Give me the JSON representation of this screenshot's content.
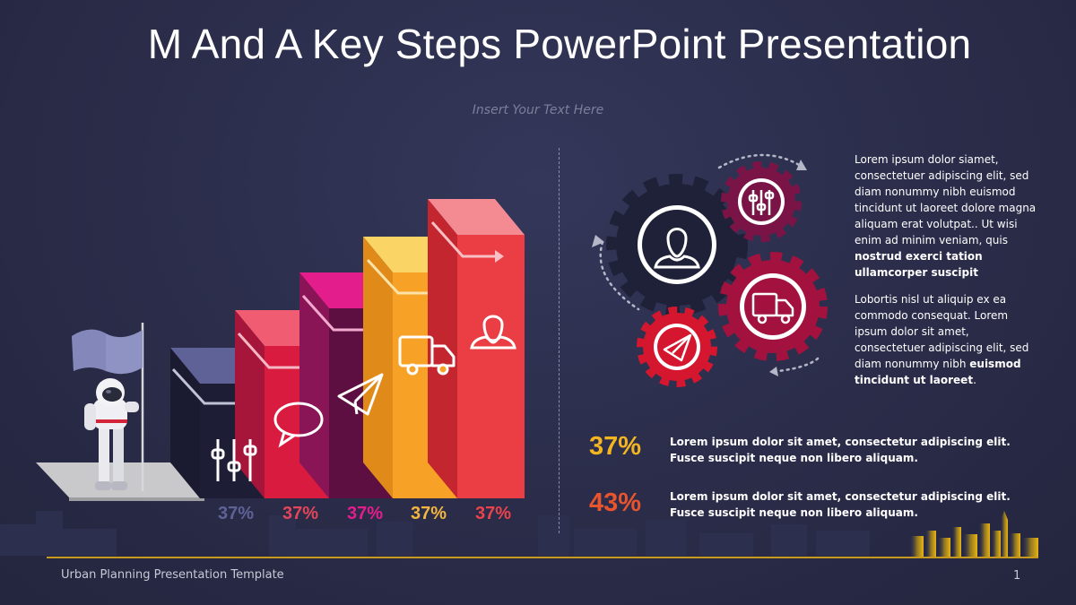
{
  "slide": {
    "title": "M And A Key Steps PowerPoint Presentation",
    "subtitle": "Insert Your Text Here",
    "footer": "Urban Planning Presentation Template",
    "page_number": "1"
  },
  "steps": [
    {
      "label": "37%",
      "color": "#5f6296",
      "icon": "sliders-icon"
    },
    {
      "label": "37%",
      "color": "#e3455a",
      "icon": "chat-bubble-icon"
    },
    {
      "label": "37%",
      "color": "#e41d8c",
      "icon": "paper-plane-icon"
    },
    {
      "label": "37%",
      "color": "#f4b63f",
      "icon": "truck-icon"
    },
    {
      "label": "37%",
      "color": "#e9434b",
      "icon": "user-icon"
    }
  ],
  "gears": [
    {
      "icon": "user-icon",
      "color": "#1f2138"
    },
    {
      "icon": "sliders-icon",
      "color": "#7a1447"
    },
    {
      "icon": "truck-icon",
      "color": "#a3123e"
    },
    {
      "icon": "paper-plane-icon",
      "color": "#d5162f"
    }
  ],
  "paragraphs": {
    "p1_normal": "Lorem ipsum dolor siamet, consectetuer adipiscing elit, sed diam nonummy nibh euismod tincidunt ut laoreet dolore magna aliquam erat volutpat.. Ut wisi enim ad minim veniam, quis",
    "p1_bold": "nostrud exerci tation ullamcorper suscipit",
    "p2_normal": "Lobortis nisl ut aliquip ex ea commodo consequat. Lorem ipsum dolor sit amet, consectetuer adipiscing elit, sed diam nonummy nibh",
    "p2_bold": "euismod tincidunt ut laoreet",
    "p2_end": "."
  },
  "stats": [
    {
      "value": "37%",
      "color": "#f3b520",
      "text": "Lorem ipsum dolor sit amet, consectetur adipiscing elit. Fusce suscipit neque non libero aliquam."
    },
    {
      "value": "43%",
      "color": "#e8542e",
      "text": "Lorem ipsum dolor sit amet, consectetur adipiscing elit. Fusce suscipit neque non libero aliquam."
    }
  ]
}
